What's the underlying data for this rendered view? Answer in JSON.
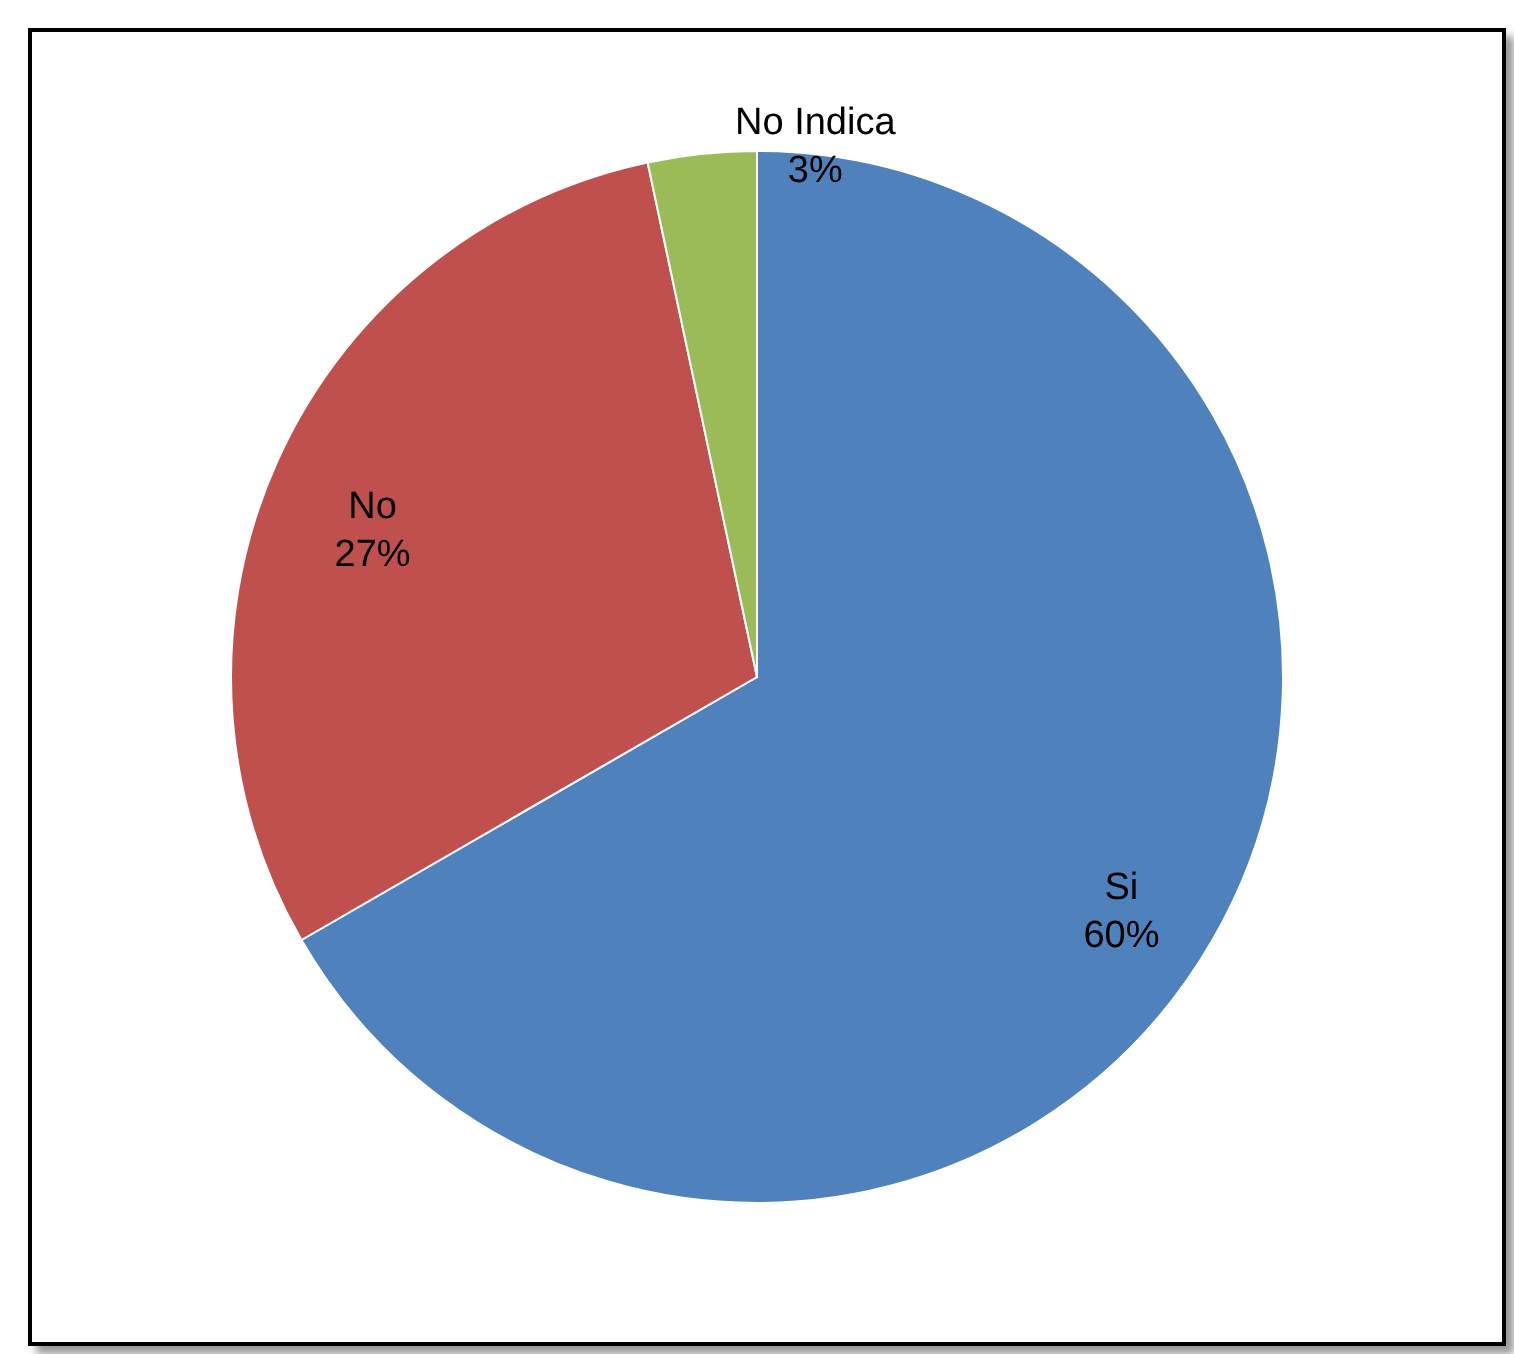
{
  "chart_data": {
    "type": "pie",
    "categories": [
      "Si",
      "No",
      "No Indica"
    ],
    "values": [
      60,
      27,
      3
    ],
    "value_labels": [
      "60%",
      "27%",
      "3%"
    ],
    "colors": [
      "#4f81bd",
      "#c0504d",
      "#9bbb59"
    ]
  }
}
